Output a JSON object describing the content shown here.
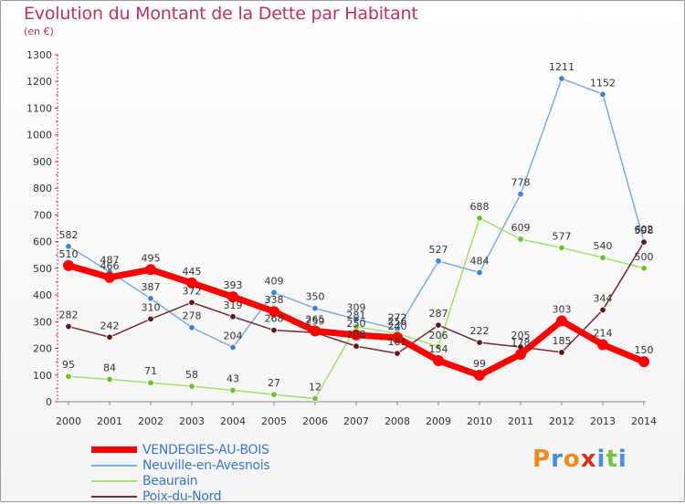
{
  "title": "Evolution du Montant de la Dette par Habitant",
  "subtitle": "(en €)",
  "brand": {
    "text": "Proxiti",
    "colors": [
      "#f08c1e",
      "#4a8fd6",
      "#f08c1e",
      "#d9331f",
      "#4a8fd6",
      "#7cc142",
      "#4a8fd6"
    ]
  },
  "chart_data": {
    "type": "line",
    "x": [
      "2000",
      "2001",
      "2002",
      "2003",
      "2004",
      "2005",
      "2006",
      "2007",
      "2008",
      "2009",
      "2010",
      "2011",
      "2012",
      "2013",
      "2014"
    ],
    "ylim": [
      0,
      1300
    ],
    "yticks": [
      0,
      100,
      200,
      300,
      400,
      500,
      600,
      700,
      800,
      900,
      1000,
      1100,
      1200,
      1300
    ],
    "grid": false,
    "legend_position": "bottom",
    "series": [
      {
        "name": "VENDEGIES-AU-BOIS",
        "color": "#ff0000",
        "marker": "#ff0000",
        "width": 7,
        "values": [
          510,
          466,
          495,
          445,
          393,
          338,
          265,
          250,
          240,
          154,
          99,
          178,
          303,
          214,
          150
        ],
        "labels": [
          "510",
          "466",
          "495",
          "445",
          "393",
          "338",
          "265",
          "250",
          "240",
          "154",
          "99",
          "178",
          "303",
          "214",
          "150"
        ]
      },
      {
        "name": "Neuville-en-Avesnois",
        "color": "#7aaedc",
        "marker": "#3d84d0",
        "width": 1.5,
        "values": [
          582,
          487,
          387,
          278,
          204,
          409,
          350,
          309,
          272,
          527,
          484,
          778,
          1211,
          1152,
          602
        ],
        "labels": [
          "582",
          "487",
          "387",
          "278",
          "204",
          "409",
          "350",
          "309",
          "272",
          "527",
          "484",
          "778",
          "1211",
          "1152",
          "602"
        ]
      },
      {
        "name": "Beaurain",
        "color": "#a6dc72",
        "marker": "#6cc22e",
        "width": 1.5,
        "values": [
          95,
          84,
          71,
          58,
          43,
          27,
          12,
          281,
          256,
          206,
          688,
          609,
          577,
          540,
          500
        ],
        "labels": [
          "95",
          "84",
          "71",
          "58",
          "43",
          "27",
          "12",
          "281",
          "256",
          "206",
          "688",
          "609",
          "577",
          "540",
          "500"
        ]
      },
      {
        "name": "Poix-du-Nord",
        "color": "#7b2b2b",
        "marker": "#5e1818",
        "width": 1.5,
        "values": [
          282,
          242,
          310,
          372,
          319,
          268,
          259,
          208,
          181,
          287,
          222,
          205,
          185,
          344,
          598
        ],
        "labels": [
          "282",
          "242",
          "310",
          "372",
          "319",
          "268",
          "259",
          "208",
          "181",
          "287",
          "222",
          "205",
          "185",
          "344",
          "598"
        ]
      }
    ]
  }
}
